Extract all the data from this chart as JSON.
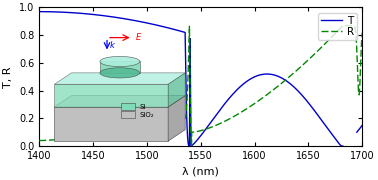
{
  "xlim": [
    1400,
    1700
  ],
  "ylim": [
    0,
    1
  ],
  "xlabel": "λ (nm)",
  "ylabel": "T, R",
  "res_lam": 1539.5,
  "T_color": "#0000cc",
  "R_color": "#008800",
  "bg_color": "#ffffff",
  "yticks": [
    0,
    0.2,
    0.4,
    0.6,
    0.8,
    1.0
  ],
  "xticks": [
    1400,
    1450,
    1500,
    1550,
    1600,
    1650,
    1700
  ],
  "si_color": "#80dbb8",
  "si_color_dark": "#55bb95",
  "si_color_top": "#aaeedd",
  "sio2_color": "#c0c0c0",
  "sio2_color_top": "#d8d8d8"
}
